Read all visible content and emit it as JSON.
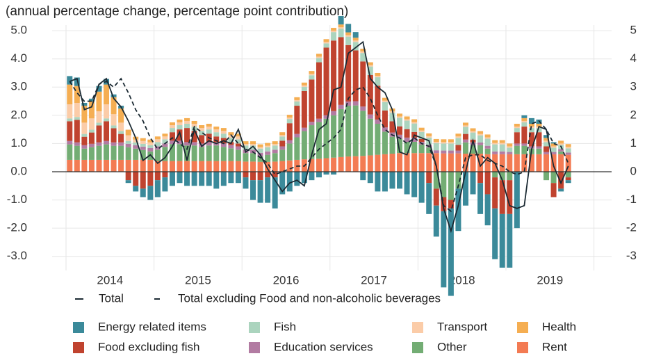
{
  "chart_data": {
    "type": "stacked_bar_line",
    "title": "(annual percentage change, percentage point contribution)",
    "categories": [
      "2014",
      null,
      null,
      null,
      null,
      null,
      null,
      null,
      null,
      null,
      null,
      null,
      "2015",
      null,
      null,
      null,
      null,
      null,
      null,
      null,
      null,
      null,
      null,
      null,
      "2016",
      null,
      null,
      null,
      null,
      null,
      null,
      null,
      null,
      null,
      null,
      null,
      "2017",
      null,
      null,
      null,
      null,
      null,
      null,
      null,
      null,
      null,
      null,
      null,
      "2018",
      null,
      null,
      null,
      null,
      null,
      null,
      null,
      null,
      null,
      null,
      null,
      "2019",
      null,
      null,
      null,
      null,
      null,
      null,
      null,
      null
    ],
    "ylim": [
      -3.5,
      5.2
    ],
    "yticks": [
      {
        "value": 5,
        "label": "5.0"
      },
      {
        "value": 4,
        "label": "4.0"
      },
      {
        "value": 3,
        "label": "3.0"
      },
      {
        "value": 2,
        "label": "2.0"
      },
      {
        "value": 1,
        "label": "1.0"
      },
      {
        "value": 0,
        "label": "0.0"
      },
      {
        "value": -1,
        "label": "-1.0"
      },
      {
        "value": -2,
        "label": "-2.0"
      },
      {
        "value": -3,
        "label": "-3.0"
      }
    ],
    "y2lim": [
      -3.5,
      5.2
    ],
    "y2ticks": [
      5,
      4,
      3,
      2,
      1,
      0,
      -1,
      -2,
      -3
    ],
    "grid": true,
    "series": [
      {
        "name": "Energy related items",
        "color": "#3b8a9a",
        "values": [
          0.3,
          0.3,
          0.1,
          0.1,
          0.2,
          0.2,
          0.1,
          0.1,
          -0.1,
          -0.2,
          -0.3,
          -0.5,
          -0.6,
          -0.5,
          -0.5,
          -0.4,
          -0.5,
          -0.5,
          -0.5,
          -0.5,
          -0.6,
          -0.5,
          -0.4,
          -0.4,
          -0.4,
          -0.7,
          -0.8,
          -0.9,
          -1.1,
          -0.8,
          -0.7,
          -0.5,
          -0.4,
          -0.3,
          -0.2,
          -0.1,
          -0.1,
          0.3,
          0.3,
          0.2,
          -0.3,
          -0.4,
          -0.7,
          -0.7,
          -0.6,
          -0.6,
          -0.8,
          -0.9,
          -1.1,
          -1.1,
          -1.1,
          -2.7,
          -3.1,
          -1.5,
          -1.2,
          -0.8,
          -1.1,
          -1.1,
          -1.8,
          -1.9,
          -1.9,
          -2.0,
          0.1,
          0.2,
          0.15,
          0.1,
          0.05,
          -0.1,
          -0.1
        ]
      },
      {
        "name": "Food excluding fish",
        "color": "#c0432f",
        "values": [
          0.7,
          0.8,
          0.3,
          0.4,
          0.6,
          0.7,
          0.5,
          0.3,
          -0.3,
          -0.5,
          -0.6,
          -0.5,
          -0.3,
          -0.2,
          0.3,
          0.4,
          0.5,
          0.4,
          0.3,
          0.3,
          0.2,
          0.2,
          0.1,
          0.1,
          -0.2,
          -0.3,
          -0.3,
          -0.2,
          -0.2,
          0.2,
          0.6,
          1.0,
          1.3,
          1.5,
          2.0,
          2.4,
          2.5,
          2.4,
          2.0,
          1.8,
          1.6,
          1.4,
          1.2,
          0.6,
          0.4,
          0.3,
          0.3,
          0.2,
          0.1,
          -0.4,
          -0.6,
          -0.5,
          -0.3,
          0.2,
          0.2,
          0.1,
          -0.4,
          -0.8,
          -1.1,
          -1.2,
          -1.2,
          0.4,
          0.6,
          0.5,
          0.5,
          0.2,
          -0.5,
          -0.6,
          -0.1
        ]
      },
      {
        "name": "Fish",
        "color": "#abd4be",
        "values": [
          0.1,
          0.1,
          0.1,
          0.1,
          0.1,
          0.1,
          0.1,
          0.1,
          0.1,
          0.1,
          0.1,
          0.1,
          0.15,
          0.15,
          0.15,
          0.15,
          0.15,
          0.15,
          0.15,
          0.15,
          0.15,
          0.15,
          0.15,
          0.15,
          0.15,
          0.15,
          0.15,
          0.15,
          0.15,
          0.15,
          0.15,
          0.15,
          0.15,
          0.15,
          0.15,
          0.15,
          0.3,
          0.3,
          0.3,
          0.3,
          0.3,
          0.3,
          0.3,
          0.3,
          0.3,
          0.3,
          0.3,
          0.3,
          0.25,
          0.25,
          0.25,
          0.25,
          0.25,
          0.25,
          0.25,
          0.25,
          0.25,
          0.25,
          0.25,
          0.25,
          0.15,
          0.15,
          0.15,
          0.15,
          0.15,
          0.15,
          0.15,
          0.15,
          0.15
        ]
      },
      {
        "name": "Education services",
        "color": "#b27ba2",
        "values": [
          0.12,
          0.12,
          0.12,
          0.12,
          0.12,
          0.12,
          0.12,
          0.12,
          0.12,
          0.12,
          0.12,
          0.12,
          0.12,
          0.12,
          0.12,
          0.12,
          0.12,
          0.12,
          0.12,
          0.12,
          0.12,
          0.12,
          0.12,
          0.12,
          0.12,
          0.12,
          0.12,
          0.12,
          0.12,
          0.12,
          0.12,
          0.12,
          0.12,
          0.12,
          0.12,
          0.12,
          0.15,
          0.15,
          0.15,
          0.15,
          0.15,
          0.15,
          0.15,
          0.15,
          0.15,
          0.15,
          0.15,
          0.15,
          0.1,
          0.1,
          0.1,
          0.1,
          0.1,
          0.1,
          0.1,
          0.1,
          0.1,
          0.1,
          0.1,
          0.1,
          0.08,
          0.08,
          0.08,
          0.08,
          0.08,
          0.08,
          0.08,
          0.08,
          0.08
        ]
      },
      {
        "name": "Transport",
        "color": "#fbcca8",
        "values": [
          0.5,
          0.5,
          0.4,
          0.4,
          0.4,
          0.5,
          0.4,
          0.3,
          0.2,
          0.1,
          0.1,
          0.1,
          0.1,
          0.1,
          0.1,
          0.1,
          0.1,
          0.1,
          0.1,
          0.1,
          0.1,
          0.1,
          0.1,
          0.1,
          0.05,
          0.05,
          0.05,
          0.05,
          0.05,
          0.05,
          0.05,
          0.05,
          0.05,
          0.05,
          0.05,
          0.05,
          0.05,
          0.05,
          0.05,
          0.05,
          0.05,
          0.05,
          0.05,
          0.05,
          0.05,
          0.05,
          0.05,
          0.05,
          0.05,
          0.05,
          0.05,
          0.05,
          0.05,
          0.05,
          0.05,
          0.05,
          0.05,
          0.05,
          0.05,
          0.05,
          0.05,
          0.05,
          0.05,
          0.05,
          0.05,
          0.05,
          0.05,
          0.05,
          0.05
        ]
      },
      {
        "name": "Other",
        "color": "#73ad74",
        "values": [
          0.55,
          0.5,
          0.4,
          0.45,
          0.5,
          0.55,
          0.5,
          0.5,
          0.45,
          0.4,
          0.35,
          0.3,
          0.4,
          0.5,
          0.6,
          0.6,
          0.55,
          0.55,
          0.5,
          0.55,
          0.55,
          0.5,
          0.45,
          0.4,
          0.3,
          0.3,
          0.2,
          0.25,
          0.3,
          0.4,
          0.6,
          0.8,
          1.0,
          1.2,
          1.3,
          1.4,
          1.5,
          1.7,
          1.8,
          1.8,
          1.6,
          1.3,
          1.1,
          0.8,
          0.6,
          0.5,
          0.4,
          0.4,
          0.3,
          0.2,
          -0.6,
          -0.9,
          -1.0,
          -0.6,
          0.4,
          0.3,
          0.3,
          0.2,
          -0.2,
          -0.3,
          -0.3,
          0.3,
          0.3,
          0.2,
          0.2,
          -0.3,
          -0.4,
          0.1,
          -0.2
        ]
      },
      {
        "name": "Health",
        "color": "#f5ae52",
        "values": [
          0.7,
          0.6,
          0.6,
          0.6,
          0.7,
          0.7,
          0.6,
          0.5,
          0.2,
          0.1,
          0.1,
          0.1,
          0.1,
          0.1,
          0.1,
          0.1,
          0.1,
          0.1,
          0.1,
          0.1,
          0.1,
          0.1,
          0.1,
          0.1,
          0.1,
          0.1,
          0.1,
          0.1,
          0.1,
          0.1,
          0.1,
          0.1,
          0.1,
          0.1,
          0.1,
          0.1,
          0.1,
          0.1,
          0.1,
          0.1,
          0.1,
          0.1,
          0.1,
          0.1,
          0.1,
          0.1,
          0.1,
          0.1,
          0.1,
          0.1,
          0.1,
          0.1,
          0.1,
          0.1,
          0.1,
          0.1,
          0.1,
          0.1,
          0.1,
          0.1,
          0.1,
          0.1,
          0.1,
          0.1,
          0.1,
          0.1,
          0.1,
          0.1,
          0.1
        ]
      },
      {
        "name": "Rent",
        "color": "#f37b53",
        "values": [
          0.42,
          0.42,
          0.42,
          0.42,
          0.42,
          0.42,
          0.42,
          0.42,
          0.42,
          0.42,
          0.42,
          0.42,
          0.38,
          0.38,
          0.38,
          0.38,
          0.38,
          0.38,
          0.38,
          0.38,
          0.38,
          0.38,
          0.38,
          0.38,
          0.36,
          0.36,
          0.35,
          0.35,
          0.36,
          0.38,
          0.4,
          0.42,
          0.44,
          0.45,
          0.46,
          0.48,
          0.5,
          0.52,
          0.54,
          0.55,
          0.56,
          0.58,
          0.6,
          0.62,
          0.64,
          0.66,
          0.66,
          0.66,
          0.66,
          0.66,
          0.66,
          0.65,
          0.65,
          0.65,
          0.64,
          0.64,
          0.64,
          0.62,
          0.62,
          0.62,
          0.62,
          0.62,
          0.62,
          0.62,
          0.62,
          0.62,
          0.62,
          0.62,
          0.6
        ]
      }
    ],
    "lines": [
      {
        "name": "Total",
        "color": "#1b2a33",
        "dashed": false,
        "values": [
          3.2,
          3.3,
          2.2,
          2.3,
          3.1,
          3.3,
          2.6,
          2.3,
          1.8,
          1.2,
          0.4,
          0.6,
          0.3,
          0.5,
          0.9,
          1.4,
          0.4,
          1.5,
          0.9,
          1.1,
          1.0,
          1.1,
          1.0,
          1.5,
          0.7,
          0.9,
          0.6,
          0.1,
          -0.3,
          -0.7,
          -0.4,
          -0.3,
          -0.5,
          0.6,
          1.5,
          1.7,
          2.9,
          3.0,
          4.2,
          4.4,
          4.6,
          3.3,
          3.0,
          2.8,
          2.2,
          0.7,
          0.6,
          1.3,
          1.2,
          1.1,
          0.2,
          -1.3,
          -2.1,
          -1.2,
          0.0,
          1.1,
          0.2,
          0.5,
          0.3,
          -0.3,
          -1.2,
          -1.3,
          -1.2,
          0.8,
          1.6,
          1.5,
          0.2,
          -0.4,
          0.2
        ]
      },
      {
        "name": "Total excluding Food and non-alcoholic beverages",
        "color": "#1b2a33",
        "dashed": true,
        "values": [
          3.2,
          2.8,
          2.5,
          2.5,
          3.1,
          3.2,
          3.0,
          3.3,
          2.8,
          2.2,
          1.8,
          1.2,
          0.8,
          1.0,
          1.2,
          1.0,
          0.8,
          1.6,
          1.4,
          1.2,
          1.1,
          1.0,
          1.3,
          1.0,
          0.8,
          0.7,
          0.5,
          0.3,
          -0.1,
          0.0,
          0.1,
          0.2,
          0.2,
          0.5,
          0.8,
          1.0,
          1.2,
          1.5,
          2.6,
          2.9,
          3.0,
          2.6,
          2.0,
          1.5,
          1.3,
          1.2,
          1.0,
          1.2,
          1.0,
          0.9,
          0.2,
          -1.2,
          -1.4,
          -0.5,
          0.5,
          0.6,
          0.6,
          0.4,
          0.3,
          0.2,
          0.0,
          -0.1,
          0.0,
          1.7,
          1.8,
          1.5,
          1.0,
          0.9,
          0.3
        ]
      }
    ]
  }
}
